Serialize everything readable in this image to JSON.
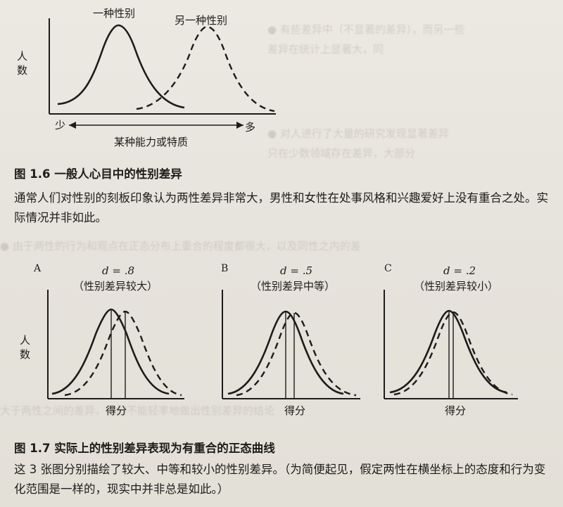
{
  "figure16": {
    "curve_left_label": "一种性别",
    "curve_right_label": "另一种性别",
    "y_label": "人数",
    "few_label": "少",
    "many_label": "多",
    "x_label": "某种能力或特质",
    "caption_title": "图 1.6   一般人心目中的性别差异",
    "caption_body": "通常人们对性别的刻板印象认为两性差异非常大，男性和女性在处事风格和兴趣爱好上没有重合之处。实际情况并非如此。"
  },
  "figure17": {
    "y_label": "人数",
    "panels": [
      {
        "letter": "A",
        "d_label": "d = .8",
        "desc": "（性别差异较大）",
        "x_label": "得分"
      },
      {
        "letter": "B",
        "d_label": "d = .5",
        "desc": "（性别差异中等）",
        "x_label": "得分"
      },
      {
        "letter": "C",
        "d_label": "d = .2",
        "desc": "（性别差异较小）",
        "x_label": "得分"
      }
    ],
    "caption_title": "图 1.7   实际上的性别差异表现为有重合的正态曲线",
    "caption_body": "这 3 张图分别描绘了较大、中等和较小的性别差异。（为简便起见，假定两性在横坐标上的态度和行为变化范围是一样的，现实中并非总是如此。）"
  }
}
